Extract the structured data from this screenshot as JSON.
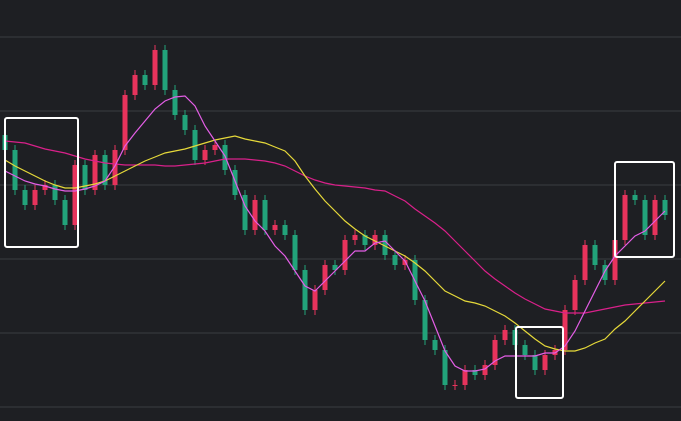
{
  "chart_data": {
    "type": "candlestick",
    "open": [
      286,
      271,
      231,
      216,
      231,
      236,
      221,
      196,
      256,
      231,
      266,
      236,
      271,
      326,
      346,
      336,
      371,
      331,
      306,
      291,
      261,
      271,
      276,
      251,
      226,
      191,
      221,
      191,
      196,
      186,
      151,
      111,
      131,
      156,
      151,
      181,
      186,
      176,
      186,
      166,
      156,
      161,
      121,
      81,
      71,
      36,
      36,
      51,
      46,
      56,
      81,
      91,
      76,
      66,
      51,
      66,
      71,
      111,
      141,
      176,
      156,
      141,
      181,
      226,
      221,
      186,
      221
    ],
    "high": [
      291,
      276,
      236,
      236,
      241,
      241,
      226,
      261,
      261,
      271,
      271,
      276,
      331,
      351,
      351,
      376,
      376,
      336,
      311,
      296,
      276,
      281,
      281,
      256,
      231,
      226,
      226,
      201,
      201,
      191,
      156,
      136,
      161,
      161,
      186,
      191,
      191,
      191,
      191,
      171,
      166,
      166,
      126,
      86,
      76,
      41,
      56,
      56,
      61,
      86,
      96,
      96,
      81,
      71,
      71,
      76,
      116,
      146,
      181,
      181,
      161,
      186,
      231,
      231,
      226,
      226,
      226
    ],
    "low": [
      266,
      226,
      211,
      211,
      226,
      216,
      191,
      191,
      226,
      226,
      231,
      231,
      266,
      321,
      331,
      331,
      326,
      301,
      286,
      256,
      256,
      266,
      246,
      221,
      186,
      186,
      186,
      186,
      181,
      146,
      106,
      106,
      126,
      146,
      146,
      176,
      171,
      171,
      161,
      151,
      151,
      116,
      76,
      66,
      31,
      31,
      31,
      41,
      41,
      51,
      76,
      71,
      61,
      46,
      46,
      61,
      66,
      106,
      136,
      151,
      136,
      136,
      176,
      216,
      181,
      181,
      201
    ],
    "close": [
      271,
      231,
      216,
      231,
      236,
      221,
      196,
      256,
      231,
      266,
      236,
      271,
      326,
      346,
      336,
      371,
      331,
      306,
      291,
      261,
      271,
      276,
      251,
      226,
      191,
      221,
      191,
      196,
      186,
      151,
      111,
      131,
      156,
      151,
      181,
      186,
      176,
      186,
      166,
      156,
      161,
      121,
      81,
      71,
      36,
      36,
      51,
      46,
      56,
      81,
      91,
      76,
      66,
      51,
      66,
      71,
      111,
      141,
      176,
      156,
      141,
      181,
      226,
      221,
      186,
      221,
      206
    ],
    "up_color": "#e8335c",
    "down_color": "#22a37a",
    "series": [
      {
        "color": "#d9208a",
        "values": [
          280,
          279,
          278,
          275,
          272,
          270,
          268,
          265,
          262,
          260,
          258,
          257,
          256,
          256,
          256,
          256,
          255,
          255,
          256,
          257,
          258,
          260,
          262,
          262,
          262,
          261,
          260,
          258,
          255,
          250,
          245,
          241,
          238,
          236,
          235,
          234,
          233,
          231,
          230,
          225,
          220,
          212,
          205,
          198,
          190,
          180,
          170,
          160,
          150,
          142,
          135,
          128,
          122,
          117,
          112,
          110,
          108,
          108,
          108,
          110,
          112,
          114,
          116,
          117,
          118,
          119,
          120
        ]
      },
      {
        "color": "#e6d93a",
        "values": [
          261,
          255,
          250,
          245,
          240,
          236,
          233,
          233,
          235,
          237,
          240,
          245,
          250,
          255,
          260,
          264,
          268,
          270,
          272,
          275,
          278,
          281,
          283,
          285,
          282,
          280,
          278,
          274,
          270,
          260,
          245,
          232,
          220,
          210,
          200,
          192,
          185,
          180,
          175,
          170,
          165,
          158,
          150,
          140,
          130,
          125,
          120,
          118,
          115,
          110,
          105,
          98,
          90,
          82,
          75,
          72,
          70,
          70,
          73,
          78,
          82,
          92,
          100,
          110,
          120,
          130,
          140
        ]
      },
      {
        "color": "#e45ee6",
        "values": [
          250,
          245,
          240,
          237,
          235,
          232,
          230,
          230,
          232,
          235,
          240,
          255,
          275,
          288,
          300,
          312,
          320,
          324,
          325,
          315,
          295,
          280,
          265,
          240,
          215,
          200,
          190,
          175,
          165,
          150,
          135,
          130,
          140,
          150,
          160,
          170,
          170,
          178,
          180,
          170,
          160,
          140,
          120,
          95,
          70,
          55,
          50,
          50,
          52,
          60,
          65,
          65,
          65,
          65,
          68,
          68,
          75,
          90,
          110,
          130,
          150,
          165,
          175,
          185,
          190,
          200,
          210
        ]
      }
    ],
    "ylim": [
      0,
      421
    ],
    "yticks": [
      14,
      88,
      162,
      236,
      310,
      384
    ],
    "grid": true
  }
}
